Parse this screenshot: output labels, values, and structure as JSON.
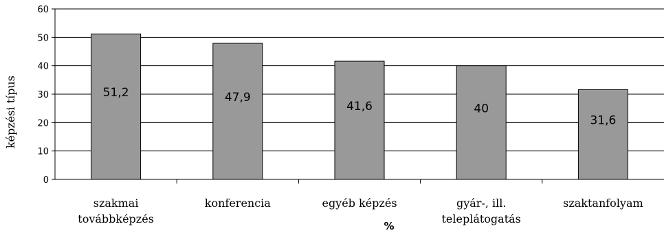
{
  "chart_data": {
    "type": "bar",
    "categories": [
      [
        "szakmai",
        "továbbképzés"
      ],
      [
        "konferencia"
      ],
      [
        "egyéb képzés"
      ],
      [
        "gyár-, ill.",
        "teleplátogatás"
      ],
      [
        "szaktanfolyam"
      ]
    ],
    "values": [
      51.2,
      47.9,
      41.6,
      40,
      31.6
    ],
    "value_labels": [
      "51,2",
      "47,9",
      "41,6",
      "40",
      "31,6"
    ],
    "title": "",
    "xlabel": "%",
    "ylabel": "képzési típus",
    "ylim": [
      0,
      60
    ],
    "yticks": [
      0,
      10,
      20,
      30,
      40,
      50,
      60
    ],
    "grid": true,
    "colors": {
      "bar_fill": "#999999",
      "bar_stroke": "#000000",
      "grid": "#000000"
    }
  }
}
